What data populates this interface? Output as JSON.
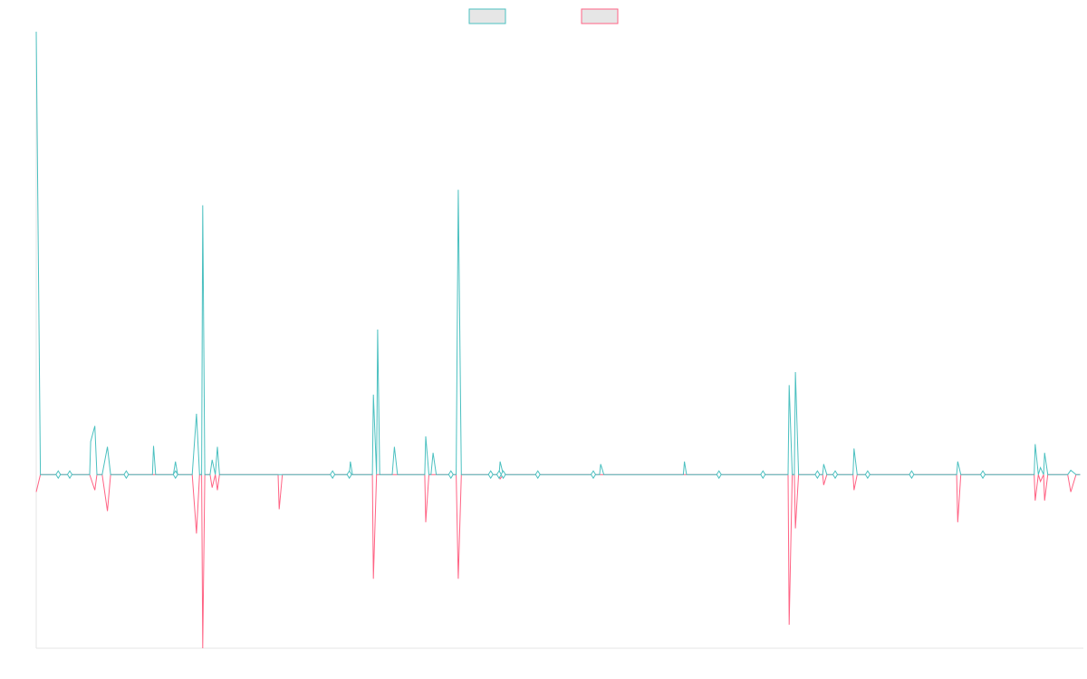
{
  "chart_data": {
    "type": "line",
    "title": "",
    "xlabel": "",
    "ylabel": "",
    "grid": false,
    "legend_placement": "top-center",
    "ylim": [
      -200,
      510
    ],
    "xlim": [
      0,
      1
    ],
    "series": [
      {
        "color": "#4bc0c0",
        "points": [
          [
            0.0,
            510
          ],
          [
            0.004,
            0
          ],
          [
            0.021,
            0
          ],
          [
            0.032,
            0
          ],
          [
            0.051,
            0
          ],
          [
            0.052,
            38
          ],
          [
            0.056,
            56
          ],
          [
            0.058,
            0
          ],
          [
            0.063,
            0
          ],
          [
            0.068,
            32
          ],
          [
            0.071,
            0
          ],
          [
            0.086,
            0
          ],
          [
            0.111,
            0
          ],
          [
            0.112,
            33
          ],
          [
            0.114,
            0
          ],
          [
            0.131,
            0
          ],
          [
            0.133,
            15
          ],
          [
            0.135,
            0
          ],
          [
            0.149,
            0
          ],
          [
            0.153,
            70
          ],
          [
            0.156,
            0
          ],
          [
            0.158,
            0
          ],
          [
            0.159,
            310
          ],
          [
            0.161,
            0
          ],
          [
            0.166,
            0
          ],
          [
            0.168,
            17
          ],
          [
            0.171,
            0
          ],
          [
            0.173,
            32
          ],
          [
            0.175,
            0
          ],
          [
            0.231,
            0
          ],
          [
            0.283,
            0
          ],
          [
            0.299,
            0
          ],
          [
            0.3,
            15
          ],
          [
            0.302,
            0
          ],
          [
            0.321,
            0
          ],
          [
            0.322,
            92
          ],
          [
            0.325,
            0
          ],
          [
            0.326,
            167
          ],
          [
            0.328,
            0
          ],
          [
            0.34,
            0
          ],
          [
            0.342,
            32
          ],
          [
            0.345,
            0
          ],
          [
            0.371,
            0
          ],
          [
            0.372,
            44
          ],
          [
            0.375,
            0
          ],
          [
            0.377,
            0
          ],
          [
            0.379,
            25
          ],
          [
            0.382,
            0
          ],
          [
            0.396,
            0
          ],
          [
            0.401,
            0
          ],
          [
            0.403,
            328
          ],
          [
            0.406,
            0
          ],
          [
            0.434,
            0
          ],
          [
            0.442,
            0
          ],
          [
            0.443,
            15
          ],
          [
            0.446,
            0
          ],
          [
            0.479,
            0
          ],
          [
            0.532,
            0
          ],
          [
            0.538,
            0
          ],
          [
            0.539,
            12
          ],
          [
            0.542,
            0
          ],
          [
            0.591,
            0
          ],
          [
            0.618,
            0
          ],
          [
            0.619,
            15
          ],
          [
            0.621,
            0
          ],
          [
            0.652,
            0
          ],
          [
            0.694,
            0
          ],
          [
            0.718,
            0
          ],
          [
            0.719,
            103
          ],
          [
            0.722,
            0
          ],
          [
            0.724,
            0
          ],
          [
            0.725,
            118
          ],
          [
            0.728,
            0
          ],
          [
            0.746,
            0
          ],
          [
            0.751,
            0
          ],
          [
            0.752,
            12
          ],
          [
            0.755,
            0
          ],
          [
            0.763,
            0
          ],
          [
            0.78,
            0
          ],
          [
            0.781,
            30
          ],
          [
            0.784,
            0
          ],
          [
            0.794,
            0
          ],
          [
            0.836,
            0
          ],
          [
            0.879,
            0
          ],
          [
            0.88,
            15
          ],
          [
            0.883,
            0
          ],
          [
            0.904,
            0
          ],
          [
            0.953,
            0
          ],
          [
            0.954,
            35
          ],
          [
            0.957,
            0
          ],
          [
            0.959,
            8
          ],
          [
            0.962,
            0
          ],
          [
            0.963,
            25
          ],
          [
            0.966,
            0
          ],
          [
            0.98,
            0
          ],
          [
            0.985,
            0
          ],
          [
            0.988,
            5
          ],
          [
            0.993,
            0
          ],
          [
            0.996,
            0
          ],
          [
            0.997,
            0
          ]
        ]
      },
      {
        "color": "#ff6384",
        "points": [
          [
            0.0,
            -20
          ],
          [
            0.004,
            0
          ],
          [
            0.021,
            0
          ],
          [
            0.032,
            0
          ],
          [
            0.051,
            0
          ],
          [
            0.056,
            -18
          ],
          [
            0.058,
            0
          ],
          [
            0.063,
            0
          ],
          [
            0.068,
            -42
          ],
          [
            0.071,
            0
          ],
          [
            0.086,
            0
          ],
          [
            0.111,
            0
          ],
          [
            0.131,
            0
          ],
          [
            0.149,
            0
          ],
          [
            0.153,
            -68
          ],
          [
            0.156,
            0
          ],
          [
            0.158,
            0
          ],
          [
            0.159,
            -200
          ],
          [
            0.161,
            0
          ],
          [
            0.166,
            0
          ],
          [
            0.168,
            -15
          ],
          [
            0.171,
            0
          ],
          [
            0.173,
            -18
          ],
          [
            0.175,
            0
          ],
          [
            0.231,
            0
          ],
          [
            0.232,
            -40
          ],
          [
            0.235,
            0
          ],
          [
            0.283,
            0
          ],
          [
            0.299,
            0
          ],
          [
            0.321,
            0
          ],
          [
            0.322,
            -120
          ],
          [
            0.325,
            0
          ],
          [
            0.371,
            0
          ],
          [
            0.372,
            -55
          ],
          [
            0.375,
            0
          ],
          [
            0.396,
            0
          ],
          [
            0.401,
            0
          ],
          [
            0.403,
            -120
          ],
          [
            0.406,
            0
          ],
          [
            0.434,
            0
          ],
          [
            0.442,
            0
          ],
          [
            0.443,
            -5
          ],
          [
            0.446,
            0
          ],
          [
            0.479,
            0
          ],
          [
            0.532,
            0
          ],
          [
            0.591,
            0
          ],
          [
            0.618,
            0
          ],
          [
            0.652,
            0
          ],
          [
            0.694,
            0
          ],
          [
            0.718,
            0
          ],
          [
            0.719,
            -173
          ],
          [
            0.722,
            0
          ],
          [
            0.724,
            0
          ],
          [
            0.725,
            -62
          ],
          [
            0.728,
            0
          ],
          [
            0.746,
            0
          ],
          [
            0.751,
            0
          ],
          [
            0.752,
            -12
          ],
          [
            0.755,
            0
          ],
          [
            0.763,
            0
          ],
          [
            0.78,
            0
          ],
          [
            0.781,
            -18
          ],
          [
            0.784,
            0
          ],
          [
            0.794,
            0
          ],
          [
            0.836,
            0
          ],
          [
            0.879,
            0
          ],
          [
            0.88,
            -55
          ],
          [
            0.883,
            0
          ],
          [
            0.904,
            0
          ],
          [
            0.953,
            0
          ],
          [
            0.954,
            -30
          ],
          [
            0.957,
            0
          ],
          [
            0.959,
            -8
          ],
          [
            0.962,
            0
          ],
          [
            0.963,
            -30
          ],
          [
            0.966,
            0
          ],
          [
            0.98,
            0
          ],
          [
            0.985,
            0
          ],
          [
            0.988,
            -20
          ],
          [
            0.993,
            0
          ],
          [
            0.996,
            0
          ],
          [
            0.997,
            0
          ]
        ]
      }
    ],
    "markers": [
      {
        "x": 0.021,
        "y": 0
      },
      {
        "x": 0.032,
        "y": 0
      },
      {
        "x": 0.086,
        "y": 0
      },
      {
        "x": 0.133,
        "y": 0
      },
      {
        "x": 0.283,
        "y": 0
      },
      {
        "x": 0.299,
        "y": 0
      },
      {
        "x": 0.396,
        "y": 0
      },
      {
        "x": 0.434,
        "y": 0
      },
      {
        "x": 0.442,
        "y": 0
      },
      {
        "x": 0.446,
        "y": 0
      },
      {
        "x": 0.479,
        "y": 0
      },
      {
        "x": 0.532,
        "y": 0
      },
      {
        "x": 0.652,
        "y": 0
      },
      {
        "x": 0.694,
        "y": 0
      },
      {
        "x": 0.746,
        "y": 0
      },
      {
        "x": 0.763,
        "y": 0
      },
      {
        "x": 0.794,
        "y": 0
      },
      {
        "x": 0.836,
        "y": 0
      },
      {
        "x": 0.904,
        "y": 0
      }
    ]
  }
}
